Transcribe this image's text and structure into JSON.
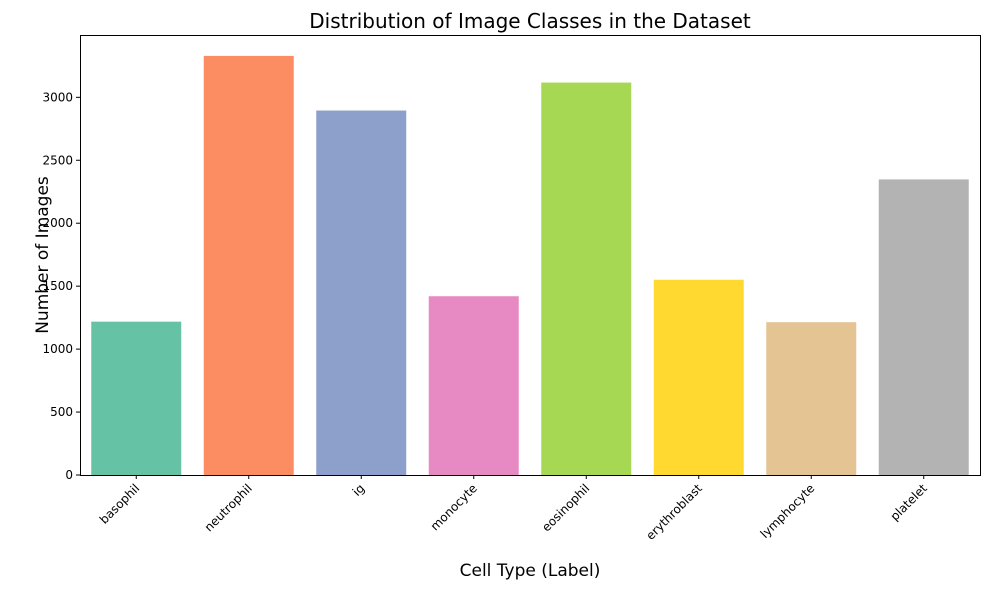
{
  "chart_data": {
    "type": "bar",
    "title": "Distribution of Image Classes in the Dataset",
    "xlabel": "Cell Type (Label)",
    "ylabel": "Number of Images",
    "categories": [
      "basophil",
      "neutrophil",
      "ig",
      "monocyte",
      "eosinophil",
      "erythroblast",
      "lymphocyte",
      "platelet"
    ],
    "values": [
      1218,
      3329,
      2895,
      1420,
      3117,
      1551,
      1214,
      2348
    ],
    "colors": [
      "#66c2a5",
      "#fc8d62",
      "#8da0cb",
      "#e78ac3",
      "#a6d854",
      "#ffd92f",
      "#e5c494",
      "#b3b3b3"
    ],
    "ylim": [
      0,
      3495
    ],
    "yticks": [
      0,
      500,
      1000,
      1500,
      2000,
      2500,
      3000
    ],
    "xtick_rotation": 45,
    "grid": false,
    "legend": "none"
  }
}
